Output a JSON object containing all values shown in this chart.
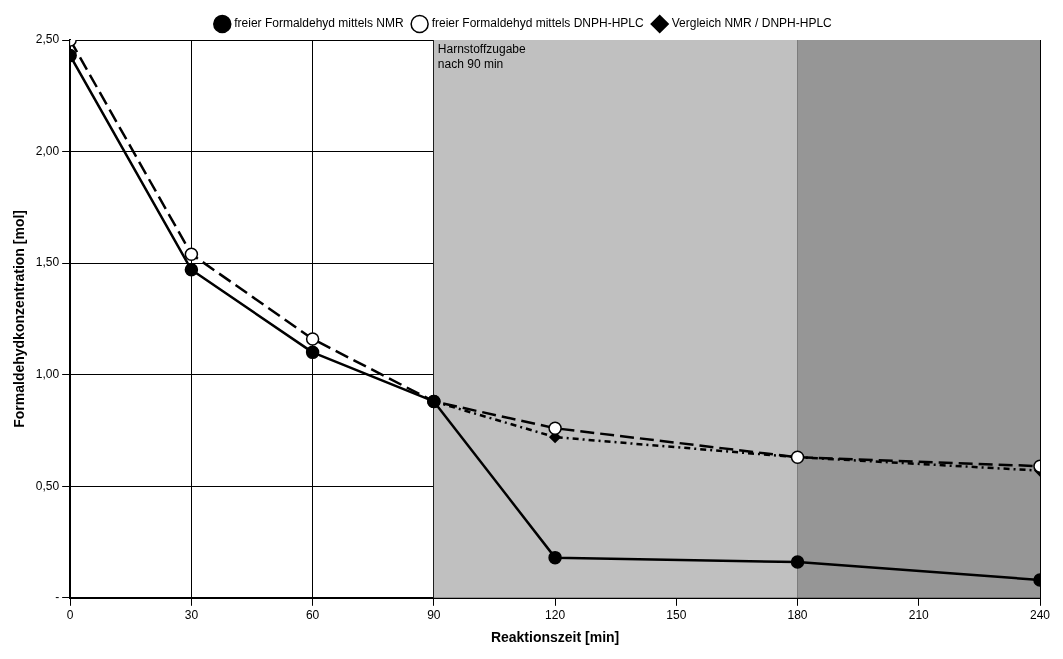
{
  "chart_data": {
    "type": "line",
    "xlabel": "Reaktionszeit [min]",
    "ylabel": "Formaldehydkonzentration [mol]",
    "x": [
      0,
      30,
      60,
      90,
      120,
      180,
      240
    ],
    "series": [
      {
        "name": "freier Formaldehyd mittels NMR",
        "color": "#000000",
        "marker": "circle",
        "line_style": "solid",
        "values": [
          2.43,
          1.47,
          1.1,
          0.88,
          0.18,
          0.16,
          0.08
        ]
      },
      {
        "name": "freier Formaldehyd mittels DNPH-HPLC",
        "color": "#000000",
        "marker": "circle",
        "line_style": "dashed",
        "values": [
          2.5,
          1.54,
          1.16,
          0.88,
          0.76,
          0.63,
          0.59
        ]
      },
      {
        "name": "Vergleich NMR / DNPH-HPLC",
        "color": "#000000",
        "marker": "diamond",
        "line_style": "dotted",
        "x": [
          90,
          120,
          180,
          240
        ],
        "values": [
          0.88,
          0.72,
          0.63,
          0.57
        ]
      }
    ],
    "bands": [
      {
        "axis": "x",
        "from": 90,
        "to": 180,
        "color": "#c0c0c0"
      },
      {
        "axis": "x",
        "from": 180,
        "to": 240,
        "color": "#969696"
      }
    ],
    "annotations": [
      {
        "text": "Harnstoffzugabe nach 90 min",
        "x": 90,
        "y": 2.5
      }
    ],
    "xlim": [
      0,
      240
    ],
    "xticks": [
      0,
      30,
      60,
      90,
      120,
      150,
      180,
      210,
      240
    ],
    "ylim": [
      0,
      2.5
    ],
    "yticks": [
      {
        "value": 0,
        "label": "-"
      },
      {
        "value": 0.5,
        "label": "0,50"
      },
      {
        "value": 1,
        "label": "1,00"
      },
      {
        "value": 1.5,
        "label": "1,50"
      },
      {
        "value": 2,
        "label": "2,00"
      },
      {
        "value": 2.5,
        "label": "2,50"
      }
    ],
    "grid": true,
    "legend": "top"
  }
}
